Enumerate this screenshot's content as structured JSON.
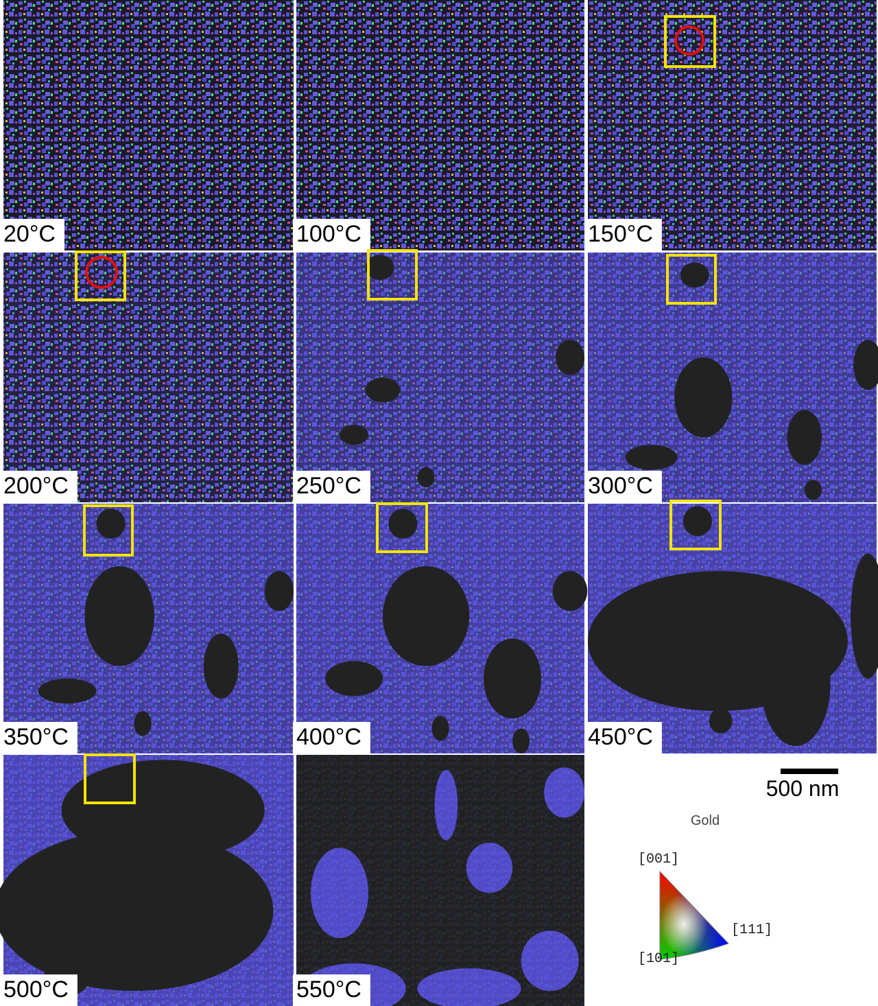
{
  "panels": [
    {
      "label": "20°C"
    },
    {
      "label": "100°C"
    },
    {
      "label": "150°C"
    },
    {
      "label": "200°C"
    },
    {
      "label": "250°C"
    },
    {
      "label": "300°C"
    },
    {
      "label": "350°C"
    },
    {
      "label": "400°C"
    },
    {
      "label": "450°C"
    },
    {
      "label": "500°C"
    },
    {
      "label": "550°C"
    }
  ],
  "scale_bar": "500 nm",
  "legend": {
    "title": "Gold",
    "corners": [
      "[001]",
      "[111]",
      "[101]"
    ]
  }
}
